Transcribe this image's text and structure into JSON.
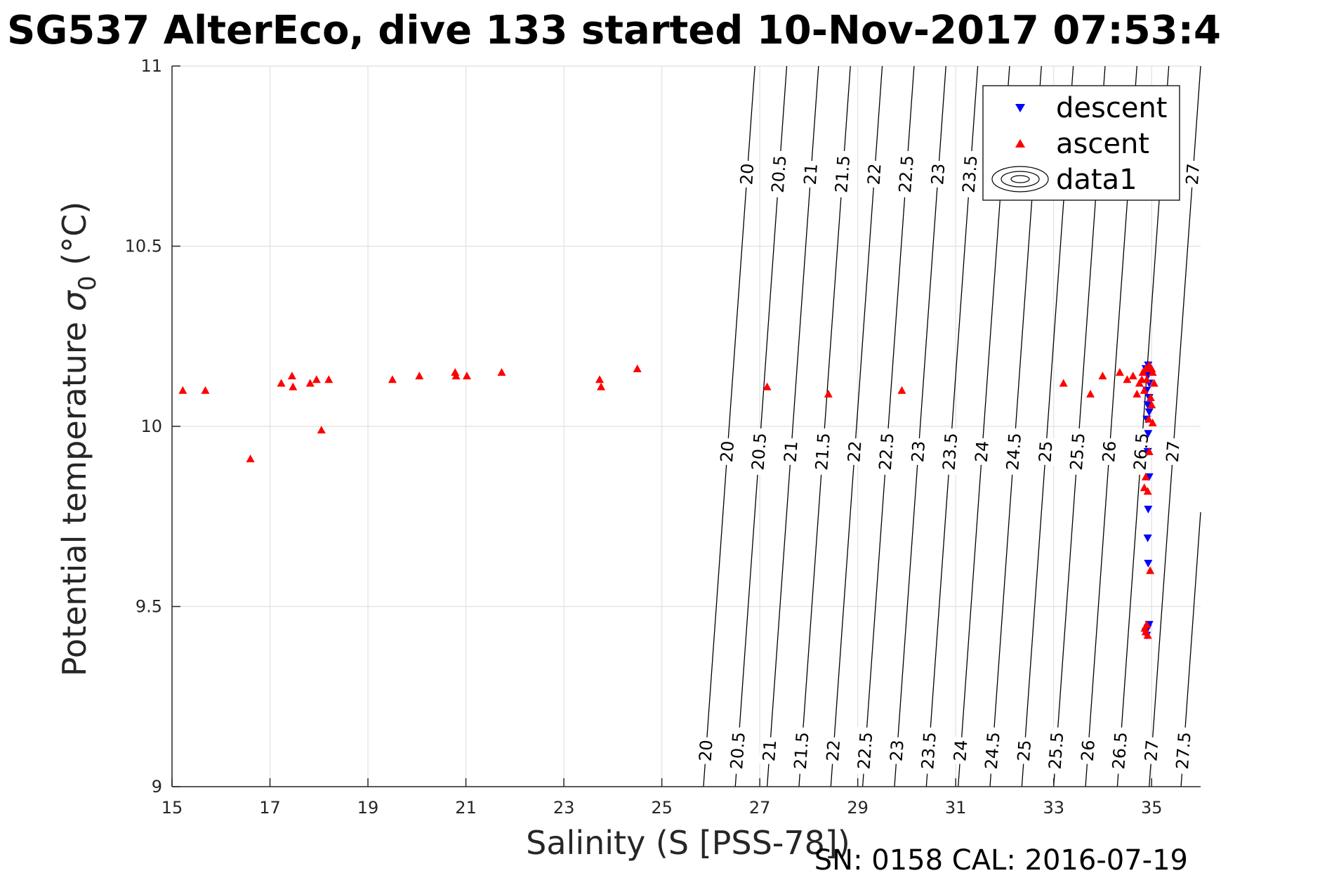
{
  "chart_data": {
    "type": "scatter",
    "title": "SG537 AlterEco, dive 133 started 10-Nov-2017 07:53:4",
    "xlabel": "Salinity (S [PSS-78])",
    "ylabel_main": "Potential temperature ",
    "ylabel_sigma": "σ",
    "ylabel_sub": "0",
    "ylabel_unit": " (°C)",
    "footer": "SN: 0158  CAL: 2016-07-19",
    "xlim": [
      15,
      36
    ],
    "ylim": [
      9,
      11
    ],
    "x_ticks": [
      15,
      17,
      19,
      21,
      23,
      25,
      27,
      29,
      31,
      33,
      35
    ],
    "y_ticks": [
      9,
      9.5,
      10,
      10.5,
      11
    ],
    "grid": true,
    "legend_placement": "top-right",
    "legend": [
      {
        "label": "descent",
        "marker": "triangle-down",
        "color": "#0000ff"
      },
      {
        "label": "ascent",
        "marker": "triangle-up",
        "color": "#ff0000"
      },
      {
        "label": "data1",
        "marker": "contour"
      }
    ],
    "contours": {
      "levels": [
        20,
        20.5,
        21,
        21.5,
        22,
        22.5,
        23,
        23.5,
        24,
        24.5,
        25,
        25.5,
        26,
        26.5,
        27,
        27.5
      ],
      "level_text": [
        "20",
        "20.5",
        "21",
        "21.5",
        "22",
        "22.5",
        "23",
        "23.5",
        "24",
        "24.5",
        "25",
        "25.5",
        "26",
        "26.5",
        "27",
        "27.5"
      ],
      "salinity_at_t9": [
        25.85,
        26.5,
        27.15,
        27.8,
        28.45,
        29.1,
        29.75,
        30.4,
        31.05,
        31.7,
        32.35,
        33.0,
        33.65,
        34.3,
        34.95,
        35.6
      ],
      "salinity_at_t11": [
        26.9,
        27.55,
        28.2,
        28.85,
        29.5,
        30.15,
        30.8,
        31.45,
        32.1,
        32.75,
        33.4,
        34.05,
        34.7,
        35.35,
        36.0,
        36.65
      ],
      "label_temps": [
        9.1,
        9.93,
        10.7
      ]
    },
    "series": [
      {
        "name": "descent",
        "marker": "triangle-down",
        "color": "#0000ff",
        "points": [
          [
            34.9,
            9.42
          ],
          [
            34.92,
            9.44
          ],
          [
            34.95,
            9.45
          ],
          [
            34.88,
            9.43
          ],
          [
            34.93,
            9.62
          ],
          [
            34.92,
            9.69
          ],
          [
            34.93,
            9.77
          ],
          [
            34.95,
            9.86
          ],
          [
            34.92,
            9.93
          ],
          [
            34.93,
            9.98
          ],
          [
            34.9,
            10.02
          ],
          [
            34.95,
            10.04
          ],
          [
            34.92,
            10.06
          ],
          [
            34.95,
            10.08
          ],
          [
            34.9,
            10.1
          ],
          [
            34.95,
            10.12
          ],
          [
            34.92,
            10.14
          ],
          [
            34.95,
            10.15
          ],
          [
            34.88,
            10.16
          ],
          [
            34.93,
            10.17
          ]
        ]
      },
      {
        "name": "ascent",
        "marker": "triangle-up",
        "color": "#ff0000",
        "points": [
          [
            15.22,
            10.1
          ],
          [
            15.68,
            10.1
          ],
          [
            16.6,
            9.91
          ],
          [
            17.23,
            10.12
          ],
          [
            17.45,
            10.14
          ],
          [
            17.47,
            10.11
          ],
          [
            17.82,
            10.12
          ],
          [
            17.95,
            10.13
          ],
          [
            18.05,
            9.99
          ],
          [
            18.2,
            10.13
          ],
          [
            19.5,
            10.13
          ],
          [
            20.05,
            10.14
          ],
          [
            20.78,
            10.15
          ],
          [
            20.8,
            10.14
          ],
          [
            21.02,
            10.14
          ],
          [
            21.73,
            10.15
          ],
          [
            23.73,
            10.13
          ],
          [
            23.76,
            10.11
          ],
          [
            24.5,
            10.16
          ],
          [
            27.15,
            10.11
          ],
          [
            28.4,
            10.09
          ],
          [
            29.9,
            10.1
          ],
          [
            33.2,
            10.12
          ],
          [
            33.75,
            10.09
          ],
          [
            34.0,
            10.14
          ],
          [
            34.35,
            10.15
          ],
          [
            34.5,
            10.13
          ],
          [
            34.62,
            10.14
          ],
          [
            34.75,
            10.12
          ],
          [
            34.82,
            10.15
          ],
          [
            34.88,
            10.16
          ],
          [
            34.95,
            10.17
          ],
          [
            35.02,
            10.15
          ],
          [
            35.05,
            10.12
          ],
          [
            34.9,
            10.13
          ],
          [
            35.0,
            10.16
          ],
          [
            34.7,
            10.09
          ],
          [
            34.85,
            10.1
          ],
          [
            34.98,
            10.08
          ],
          [
            35.0,
            10.06
          ],
          [
            35.02,
            10.01
          ],
          [
            34.95,
            9.93
          ],
          [
            34.88,
            9.86
          ],
          [
            34.85,
            9.83
          ],
          [
            34.92,
            9.82
          ],
          [
            34.97,
            9.6
          ],
          [
            34.9,
            9.45
          ],
          [
            34.88,
            9.43
          ],
          [
            34.92,
            9.42
          ],
          [
            34.86,
            9.44
          ],
          [
            34.94,
            10.02
          ],
          [
            34.8,
            10.13
          ]
        ]
      }
    ]
  }
}
